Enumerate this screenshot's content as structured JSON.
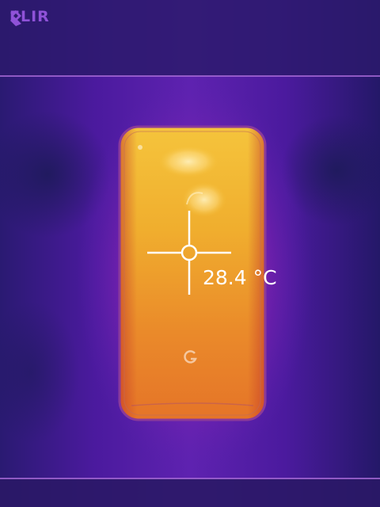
{
  "brand": {
    "logo_text": "FLIR",
    "logo_icon": "flir-flame-icon",
    "color": "#8f52d8"
  },
  "measurement": {
    "spot_temperature": "28.4 °C"
  },
  "palette": {
    "background": "#2a1670",
    "cold": "#1e1650",
    "mid": "#6a24b8",
    "warm": "#e9a52c",
    "hot": "#f6c83a"
  }
}
